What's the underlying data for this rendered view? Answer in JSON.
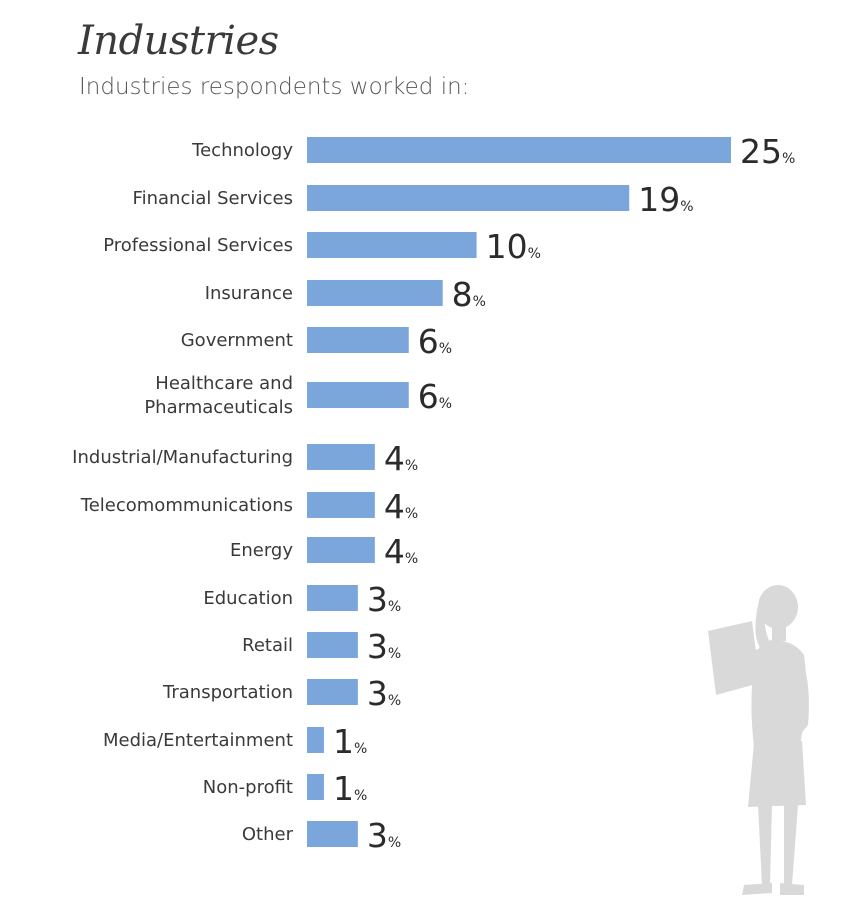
{
  "header": {
    "title": "Industries",
    "subtitle": "Industries respondents worked in:"
  },
  "chart_data": {
    "type": "bar",
    "orientation": "horizontal",
    "title": "Industries",
    "subtitle": "Industries respondents worked in:",
    "categories": [
      [
        "Technology"
      ],
      [
        "Financial Services"
      ],
      [
        "Professional Services"
      ],
      [
        "Insurance"
      ],
      [
        "Government"
      ],
      [
        "Healthcare and",
        "Pharmaceuticals"
      ],
      [
        "Industrial/Manufacturing"
      ],
      [
        "Telecomommunications"
      ],
      [
        "Energy"
      ],
      [
        "Education"
      ],
      [
        "Retail"
      ],
      [
        "Transportation"
      ],
      [
        "Media/Entertainment"
      ],
      [
        "Non-profit"
      ],
      [
        "Other"
      ]
    ],
    "values": [
      25,
      19,
      10,
      8,
      6,
      6,
      4,
      4,
      4,
      3,
      3,
      3,
      1,
      1,
      3
    ],
    "unit": "%",
    "xlim": [
      0,
      25
    ],
    "grid": false,
    "legend": "none",
    "bar_color": "#7aa6db"
  },
  "decoration": {
    "icon": "woman-reading-silhouette-icon",
    "color": "#d9d9d9"
  }
}
